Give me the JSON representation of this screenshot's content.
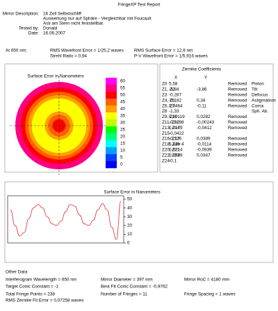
{
  "header": {
    "title": "FringeXP Test Report"
  },
  "description": {
    "rows": [
      {
        "label": "Mirror Description:",
        "lines": [
          "16 Zoll Selbstschliff",
          "Auswertung nur auf Sphäre - Vergleichbar mit Foucault",
          "Asti am Stern nicht feststellbar."
        ]
      },
      {
        "label": "Tested by:",
        "lines": [
          "Donald"
        ]
      },
      {
        "label": "Date:",
        "lines": [
          "16.06.2007"
        ]
      }
    ]
  },
  "summary": {
    "wavelength": "At 650 nm:",
    "col1": [
      "RMS Wavefront Error = 1/25,2 waves",
      "Strehl Ratio = 0,94"
    ],
    "col2": [
      "RMS Surface Error = 12,9 nm",
      "P-V Wavefront Error = 1/5,916 waves"
    ]
  },
  "surface_map": {
    "title": "Surface Error in Nanometers",
    "scale_labels": [
      60,
      55,
      50,
      45,
      40,
      35,
      30,
      25,
      20,
      15,
      10,
      5,
      0
    ]
  },
  "zernike": {
    "title": "Zernike Coefficients",
    "columns": [
      "X",
      "Y"
    ],
    "rows": [
      {
        "name": "Z0",
        "x": "5,58",
        "status": "Removed",
        "aberration": "Piston"
      },
      {
        "name": "Z1, Z2",
        "x": "-3,84",
        "y": "-3,86",
        "status": "Removed",
        "aberration": "Tilt"
      },
      {
        "name": "Z3",
        "x": "-0,287",
        "status": "Removed",
        "aberration": "Defocus"
      },
      {
        "name": "Z4, Z5",
        "x": "-0,182",
        "y": "0,34",
        "status": "Removed",
        "aberration": "Astigmatism"
      },
      {
        "name": "Z6, Z7",
        "x": "0,0464",
        "y": "-0,11",
        "status": "Removed",
        "aberration": "Coma"
      },
      {
        "name": "Z8",
        "x": "-1,33",
        "aberration": "Sph. Ab."
      },
      {
        "name": "Z9, Z10",
        "x": "0,00119",
        "y": "0,0282",
        "status": "Removed"
      },
      {
        "name": "Z11, Z12",
        "x": "-0,0198",
        "y": "-0,00243",
        "status": "Removed"
      },
      {
        "name": "Z13, Z14",
        "x": "0,0179",
        "y": "-0,0412",
        "status": "Removed"
      },
      {
        "name": "Z15",
        "x": "-0,0422"
      },
      {
        "name": "Z16, Z17",
        "x": "-0,126",
        "y": "0,0389",
        "status": "Removed"
      },
      {
        "name": "Z18, Z19",
        "x": "5,44e-4",
        "y": "-0,0114",
        "status": "Removed"
      },
      {
        "name": "Z20, Z21",
        "x": "0,0214",
        "y": "-0,0939",
        "status": "Removed"
      },
      {
        "name": "Z22, Z23",
        "x": "0,0589",
        "y": "0,0347",
        "status": "Removed"
      },
      {
        "name": "Z24",
        "x": "-0,1"
      }
    ]
  },
  "chart_data": {
    "type": "line",
    "title": "Surface Error in Nanometers",
    "color": "#e03030",
    "values": [
      38,
      20,
      8,
      12,
      28,
      40,
      44,
      40,
      30,
      22,
      20,
      25,
      36,
      44,
      42,
      32,
      22,
      20,
      26,
      38,
      45,
      38,
      18,
      4,
      48
    ],
    "ylim": [
      0,
      54
    ],
    "yticks": [
      0,
      10,
      20,
      30,
      40,
      50
    ]
  },
  "other_data": {
    "title": "Other Data",
    "rows": [
      [
        "Interferogram Wavelength = 650 nm",
        "Mirror Diameter = 397 mm",
        "Mirror RoC = 4180 mm"
      ],
      [
        "Target Conic Constant = -1",
        "Best Fit Conic Constant = -0,9762"
      ],
      [
        "Total Fringe Points = 238",
        "Number of Fringes = 11",
        "Fringe Spacing = 1 waves"
      ],
      [
        "RMS Zernike Fit Error = 0,07258 waves"
      ]
    ]
  }
}
